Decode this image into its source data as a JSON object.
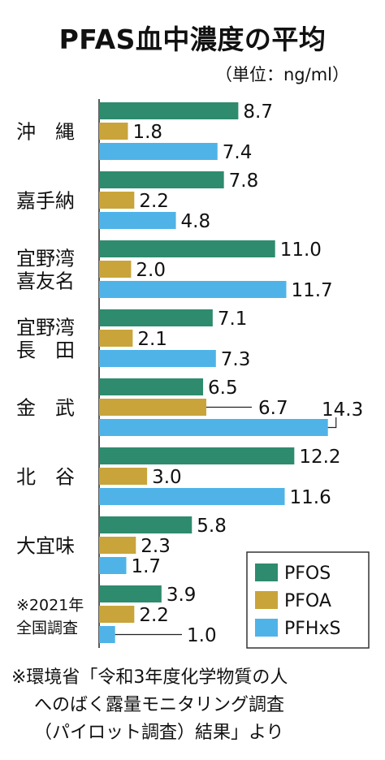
{
  "title": "PFAS血中濃度の平均",
  "unit_label": "（単位：ng/ml）",
  "chart_data": {
    "type": "bar",
    "orientation": "horizontal",
    "categories": [
      {
        "lines": [
          "沖　縄"
        ]
      },
      {
        "lines": [
          "嘉手納"
        ]
      },
      {
        "lines": [
          "宜野湾",
          "喜友名"
        ]
      },
      {
        "lines": [
          "宜野湾",
          "長　田"
        ]
      },
      {
        "lines": [
          "金　武"
        ]
      },
      {
        "lines": [
          "北　谷"
        ]
      },
      {
        "lines": [
          "大宜味"
        ]
      },
      {
        "lines": [
          "※2021年",
          "全国調査"
        ]
      }
    ],
    "series": [
      {
        "name": "PFOS",
        "color": "#2e8b6e",
        "values": [
          8.7,
          7.8,
          11.0,
          7.1,
          6.5,
          12.2,
          5.8,
          3.9
        ]
      },
      {
        "name": "PFOA",
        "color": "#c9a43a",
        "values": [
          1.8,
          2.2,
          2.0,
          2.1,
          6.7,
          3.0,
          2.3,
          2.2
        ]
      },
      {
        "name": "PFHxS",
        "color": "#4fb3e8",
        "values": [
          7.4,
          4.8,
          11.7,
          7.3,
          14.3,
          11.6,
          1.7,
          1.0
        ]
      }
    ],
    "value_labels": [
      [
        "8.7",
        "1.8",
        "7.4"
      ],
      [
        "7.8",
        "2.2",
        "4.8"
      ],
      [
        "11.0",
        "2.0",
        "11.7"
      ],
      [
        "7.1",
        "2.1",
        "7.3"
      ],
      [
        "6.5",
        "6.7",
        "14.3"
      ],
      [
        "12.2",
        "3.0",
        "11.6"
      ],
      [
        "5.8",
        "2.3",
        "1.7"
      ],
      [
        "3.9",
        "2.2",
        "1.0"
      ]
    ],
    "xlim": [
      0,
      14.3
    ],
    "legend_position": "bottom-right"
  },
  "footnote": {
    "line1": "※環境省「令和3年度化学物質の人",
    "line2": "へのばく露量モニタリング調査",
    "line3": "（パイロット調査）結果」より"
  }
}
